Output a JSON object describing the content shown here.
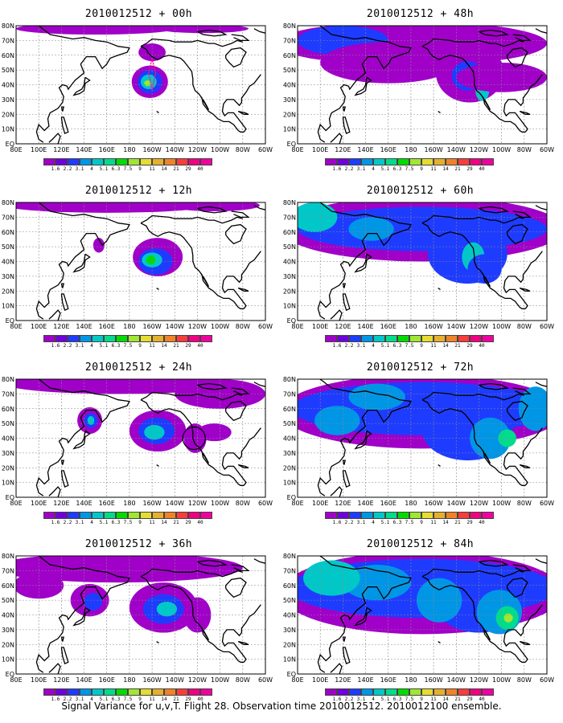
{
  "panels": [
    {
      "title": "2010012512 + 00h",
      "lead": "00h"
    },
    {
      "title": "2010012512 + 12h",
      "lead": "12h"
    },
    {
      "title": "2010012512 + 24h",
      "lead": "24h"
    },
    {
      "title": "2010012512 + 36h",
      "lead": "36h"
    },
    {
      "title": "2010012512 + 48h",
      "lead": "48h"
    },
    {
      "title": "2010012512 + 60h",
      "lead": "60h"
    },
    {
      "title": "2010012512 + 72h",
      "lead": "72h"
    },
    {
      "title": "2010012512 + 84h",
      "lead": "84h"
    }
  ],
  "lat_labels": [
    "80N",
    "70N",
    "60N",
    "50N",
    "40N",
    "30N",
    "20N",
    "10N",
    "EQ"
  ],
  "lon_labels": [
    "80E",
    "100E",
    "120E",
    "140E",
    "160E",
    "180",
    "160W",
    "140W",
    "120W",
    "100W",
    "80W",
    "60W"
  ],
  "colorbar": {
    "levels": [
      "1.6",
      "2.2",
      "3.1",
      "4",
      "5.1",
      "6.3",
      "7.5",
      "9",
      "11",
      "14",
      "21",
      "29",
      "40"
    ],
    "colors": [
      "#a000c8",
      "#6e00dc",
      "#1e3cff",
      "#0096e6",
      "#00c8c8",
      "#00dc8c",
      "#00dc00",
      "#a0e632",
      "#e6dc32",
      "#e6af2d",
      "#f08228",
      "#fa3c3c",
      "#f00082"
    ]
  },
  "caption": "Signal Variance for u,v,T. Flight 28. Observation time 2010012512. 2010012100 ensemble."
}
